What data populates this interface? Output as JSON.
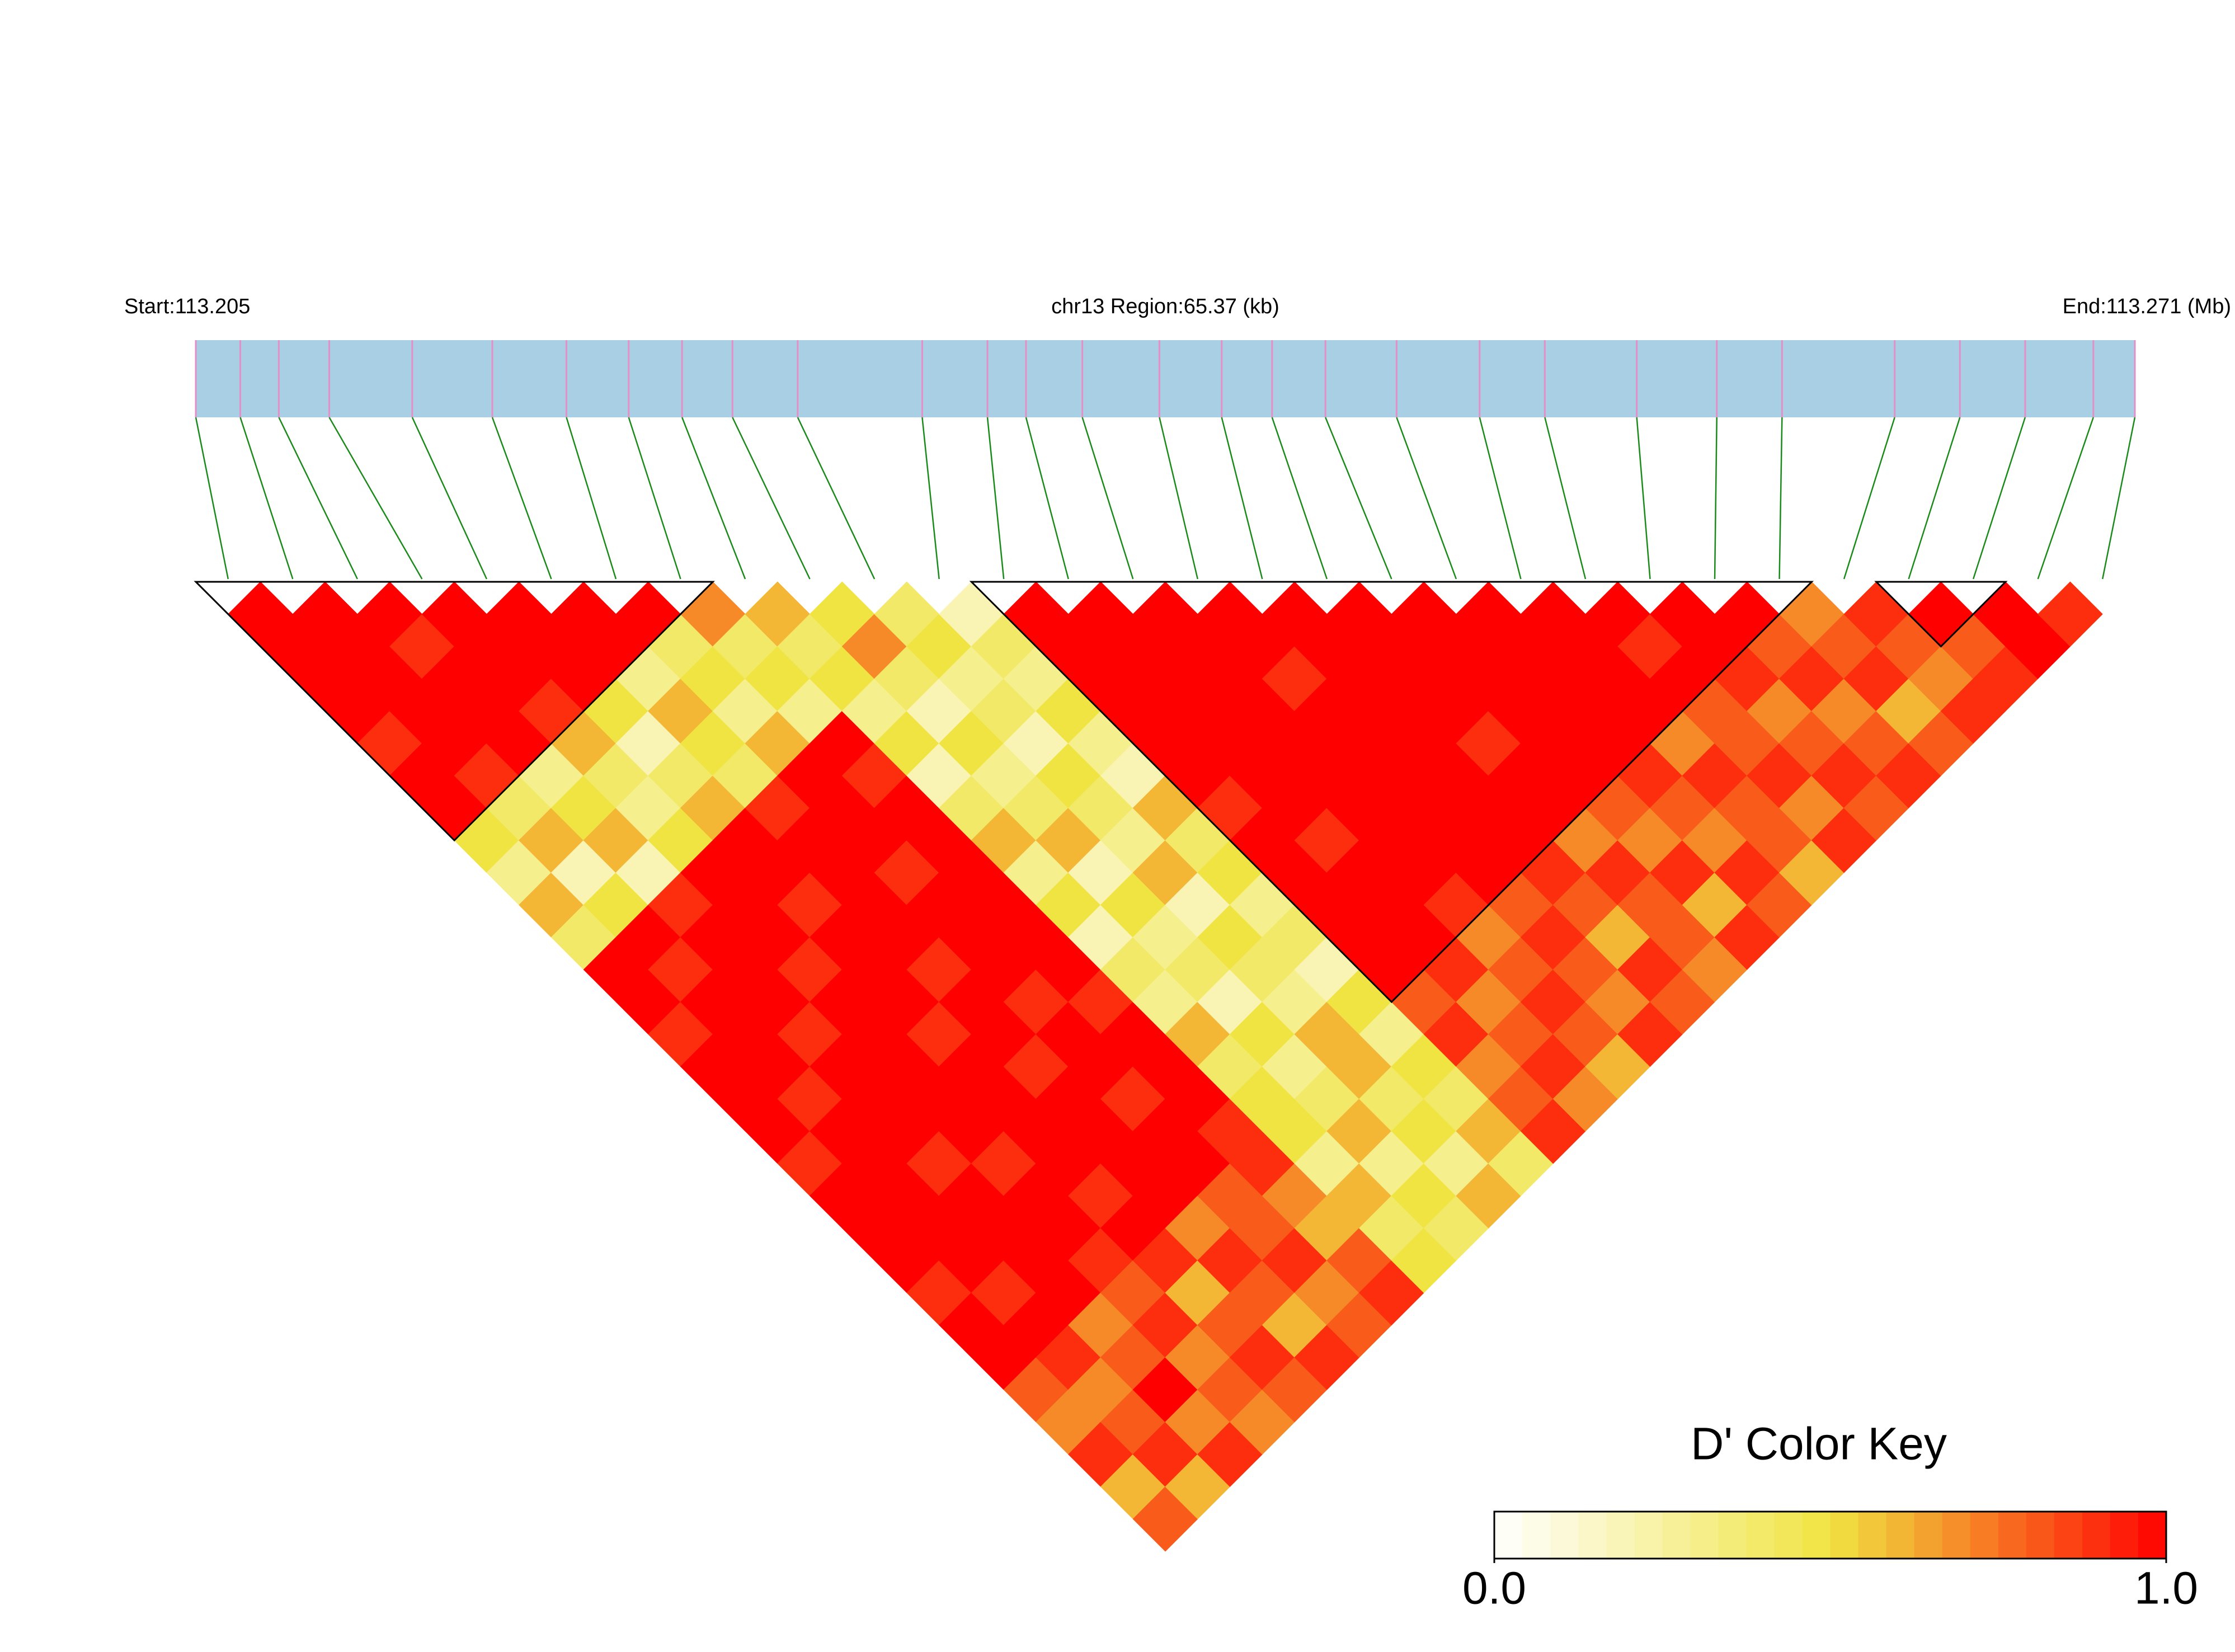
{
  "chart_data": {
    "type": "ld-heatmap",
    "start_label": "Start:113.205",
    "title": "chr13 Region:65.37 (kb)",
    "end_label": "End:113.271 (Mb)",
    "positions": [
      113.2055,
      113.207,
      113.2083,
      113.21,
      113.2128,
      113.2155,
      113.218,
      113.2201,
      113.2219,
      113.2236,
      113.2258,
      113.23,
      113.2322,
      113.2335,
      113.2354,
      113.238,
      113.2401,
      113.2418,
      113.2436,
      113.246,
      113.2488,
      113.251,
      113.2541,
      113.2568,
      113.259,
      113.2628,
      113.265,
      113.2672,
      113.2695,
      113.2709
    ],
    "dprime": [
      [
        1,
        1,
        1,
        1,
        0.9,
        1,
        1,
        0.5,
        0.3,
        0.6,
        0.4,
        1,
        1,
        0.9,
        1,
        1,
        1,
        0.9,
        1,
        1,
        1,
        0.9,
        1,
        1,
        0.8,
        0.7,
        0.9,
        0.6,
        0.8
      ],
      [
        1,
        1,
        1,
        1,
        1,
        0.9,
        0.4,
        0.6,
        0.2,
        0.5,
        1,
        0.9,
        1,
        1,
        1,
        0.9,
        1,
        1,
        1,
        1,
        1,
        0.9,
        1,
        0.9,
        0.7,
        0.8,
        0.9,
        0.6
      ],
      [
        1,
        0.9,
        1,
        1,
        1,
        0.3,
        0.5,
        0.6,
        0.2,
        0.9,
        1,
        1,
        1,
        0.9,
        1,
        1,
        1,
        0.9,
        1,
        1,
        1,
        1,
        0.7,
        0.8,
        1,
        0.7,
        0.9
      ],
      [
        1,
        1,
        1,
        0.9,
        0.6,
        0.4,
        0.3,
        0.5,
        1,
        1,
        1,
        0.9,
        1,
        1,
        1,
        1,
        1,
        0.9,
        1,
        1,
        0.9,
        0.8,
        0.9,
        0.7,
        0.8,
        0.7
      ],
      [
        1,
        1,
        1,
        0.5,
        0.2,
        0.4,
        0.6,
        1,
        1,
        0.9,
        1,
        1,
        1,
        0.9,
        1,
        1,
        1,
        1,
        0.9,
        1,
        0.9,
        0.6,
        0.8,
        0.9,
        0.8
      ],
      [
        1,
        1,
        0.3,
        0.6,
        0.5,
        0.4,
        0.9,
        1,
        1,
        1,
        1,
        0.9,
        1,
        1,
        0.9,
        1,
        1,
        1,
        1,
        0.7,
        0.9,
        0.8,
        0.6,
        0.9
      ],
      [
        1,
        0.4,
        0.5,
        0.3,
        0.6,
        1,
        1,
        1,
        0.9,
        1,
        1,
        1,
        0.9,
        1,
        1,
        0.9,
        1,
        1,
        0.8,
        0.8,
        0.9,
        0.7,
        0.8
      ],
      [
        0.7,
        0.4,
        0.5,
        0.3,
        1,
        0.9,
        1,
        1,
        1,
        1,
        1,
        1,
        0.9,
        1,
        1,
        1,
        0.9,
        0.9,
        0.7,
        0.6,
        0.8,
        0.9
      ],
      [
        0.6,
        0.4,
        0.5,
        0.3,
        0.5,
        0.2,
        0.4,
        0.6,
        0.3,
        0.5,
        0.2,
        0.4,
        0.3,
        0.6,
        0.4,
        0.5,
        0.5,
        0.3,
        0.6,
        0.4,
        0.5
      ],
      [
        0.5,
        0.7,
        0.4,
        0.2,
        0.5,
        0.3,
        0.4,
        0.6,
        0.2,
        0.5,
        0.3,
        0.4,
        0.2,
        0.5,
        0.3,
        0.4,
        0.6,
        0.3,
        0.5,
        0.4
      ],
      [
        0.4,
        0.5,
        0.3,
        0.4,
        0.2,
        0.5,
        0.4,
        0.3,
        0.6,
        0.2,
        0.5,
        0.4,
        0.3,
        0.6,
        0.6,
        0.4,
        0.5,
        0.3,
        0.6
      ],
      [
        0.2,
        0.4,
        0.3,
        0.5,
        0.3,
        0.2,
        0.6,
        0.4,
        0.5,
        0.3,
        0.4,
        0.2,
        0.5,
        0.3,
        0.5,
        0.4,
        0.6,
        0.4
      ],
      [
        1,
        1,
        1,
        1,
        1,
        1,
        0.9,
        1,
        1,
        1,
        1,
        1,
        0.8,
        0.9,
        0.7,
        0.8,
        0.9
      ],
      [
        1,
        1,
        1,
        1,
        1,
        1,
        1,
        0.9,
        1,
        1,
        1,
        0.9,
        0.7,
        0.8,
        0.9,
        0.7
      ],
      [
        1,
        1,
        1,
        1,
        1,
        1,
        1,
        1,
        1,
        0.9,
        0.7,
        0.8,
        0.9,
        0.8,
        0.6
      ],
      [
        1,
        1,
        0.9,
        1,
        1,
        1,
        1,
        1,
        1,
        0.8,
        0.9,
        0.8,
        0.7,
        0.9
      ],
      [
        1,
        1,
        1,
        1,
        1,
        1,
        1,
        1,
        0.9,
        0.8,
        0.6,
        0.9,
        0.8
      ],
      [
        1,
        1,
        1,
        1,
        0.9,
        1,
        1,
        0.7,
        0.9,
        0.8,
        0.8,
        0.7
      ],
      [
        1,
        1,
        1,
        1,
        1,
        1,
        0.8,
        0.7,
        0.9,
        0.6,
        0.9
      ],
      [
        1,
        1,
        1,
        1,
        1,
        0.9,
        0.8,
        0.7,
        0.9,
        0.8
      ],
      [
        1,
        1,
        1,
        1,
        0.7,
        0.9,
        0.8,
        0.8,
        0.6
      ],
      [
        1,
        0.9,
        1,
        0.8,
        0.8,
        0.9,
        0.7,
        0.9
      ],
      [
        1,
        1,
        0.9,
        0.7,
        0.8,
        0.9,
        0.8
      ],
      [
        1,
        0.8,
        0.9,
        0.7,
        0.8,
        0.9
      ],
      [
        0.7,
        0.8,
        0.9,
        0.6,
        0.8
      ],
      [
        0.9,
        0.8,
        0.7,
        0.9
      ],
      [
        1,
        0.8,
        0.9
      ],
      [
        1,
        1
      ],
      [
        0.9
      ]
    ],
    "blocks": [
      [
        0,
        7
      ],
      [
        12,
        24
      ],
      [
        26,
        27
      ]
    ],
    "bar_color": "#a8cfe4",
    "snp_color": "#e58fc8",
    "line_color": "#1a8a1a",
    "colorbar": {
      "title": "D' Color Key",
      "colors": [
        "#ffffff",
        "#f0e442",
        "#ff0000"
      ],
      "ticks": [
        {
          "value": 0,
          "label": "0.0"
        },
        {
          "value": 1,
          "label": "1.0"
        }
      ]
    }
  }
}
